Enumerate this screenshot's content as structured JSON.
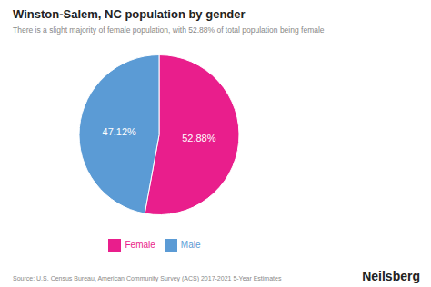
{
  "chart_data": {
    "type": "pie",
    "title": "Winston-Salem, NC population by gender",
    "subtitle": "There is a slight majority of female population, with 52.88% of total population being female",
    "categories": [
      "Female",
      "Male"
    ],
    "values": [
      52.88,
      47.12
    ],
    "value_labels": [
      "52.88%",
      "47.12%"
    ],
    "colors": [
      "#E91E8C",
      "#5B9BD5"
    ],
    "data_labels": true,
    "legend": "bottom",
    "annotations": [
      "Source: U.S. Census Bureau, American Community Survey (ACS) 2017-2021 5-Year Estimates",
      "Neilsberg"
    ]
  }
}
